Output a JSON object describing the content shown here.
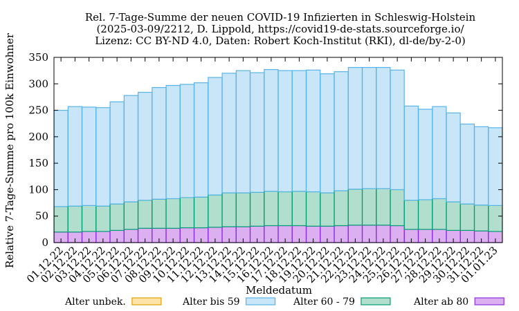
{
  "chart_data": {
    "type": "bar",
    "stacked": true,
    "title": [
      "Rel. 7-Tage-Summe der neuen COVID-19 Infizierten in Schleswig-Holstein",
      "(2025-03-09/2212, D. Lippold, https://covid19-de-stats.sourceforge.io/",
      "Lizenz: CC BY-ND 4.0, Daten: Robert Koch-Institut (RKI), dl-de/by-2-0)"
    ],
    "xlabel": "Meldedatum",
    "ylabel": "Relative 7-Tage-Summe pro 100k Einwohner",
    "ylim": [
      0,
      350
    ],
    "yticks": [
      0,
      50,
      100,
      150,
      200,
      250,
      300,
      350
    ],
    "grid": false,
    "legend_position": "bottom",
    "categories": [
      "01.12.22",
      "02.12.22",
      "03.12.22",
      "04.12.22",
      "05.12.22",
      "06.12.22",
      "07.12.22",
      "08.12.22",
      "09.12.22",
      "10.12.22",
      "11.12.22",
      "12.12.22",
      "13.12.22",
      "14.12.22",
      "15.12.22",
      "16.12.22",
      "17.12.22",
      "18.12.22",
      "19.12.22",
      "20.12.22",
      "21.12.22",
      "22.12.22",
      "23.12.22",
      "24.12.22",
      "25.12.22",
      "26.12.22",
      "27.12.22",
      "28.12.22",
      "29.12.22",
      "30.12.22",
      "31.12.22",
      "01.01.23"
    ],
    "series": [
      {
        "name": "Alter unbek.",
        "fill": "#fde3a7",
        "stroke": "#e69f00",
        "values": [
          0,
          0,
          0,
          0,
          0,
          0,
          0,
          0,
          0,
          0,
          0,
          0,
          0,
          0,
          0,
          0,
          0,
          0,
          0,
          0,
          0,
          0,
          0,
          0,
          0,
          0,
          0,
          0,
          0,
          0,
          0,
          0
        ]
      },
      {
        "name": "Alter ab 80",
        "fill": "#dcaff0",
        "stroke": "#8a2be2",
        "values": [
          20,
          20,
          21,
          21,
          23,
          25,
          27,
          27,
          27,
          28,
          28,
          29,
          30,
          30,
          31,
          32,
          32,
          32,
          31,
          31,
          32,
          33,
          33,
          33,
          32,
          25,
          25,
          25,
          23,
          23,
          22,
          21
        ]
      },
      {
        "name": "Alter 60 - 79",
        "fill": "#b2dfcd",
        "stroke": "#009e73",
        "values": [
          48,
          49,
          49,
          48,
          50,
          52,
          53,
          55,
          56,
          57,
          58,
          61,
          64,
          64,
          64,
          65,
          64,
          65,
          65,
          63,
          66,
          68,
          69,
          69,
          68,
          55,
          56,
          58,
          54,
          50,
          49,
          49
        ]
      },
      {
        "name": "Alter bis 59",
        "fill": "#c8e6f8",
        "stroke": "#56b4e9",
        "values": [
          182,
          188,
          186,
          186,
          193,
          201,
          204,
          211,
          214,
          214,
          216,
          222,
          226,
          231,
          226,
          230,
          229,
          228,
          230,
          225,
          225,
          230,
          229,
          229,
          226,
          178,
          171,
          174,
          168,
          151,
          148,
          147
        ]
      }
    ],
    "legend": [
      {
        "name": "Alter unbek.",
        "fill": "#fde3a7",
        "stroke": "#e69f00"
      },
      {
        "name": "Alter bis 59",
        "fill": "#c8e6f8",
        "stroke": "#56b4e9"
      },
      {
        "name": "Alter 60 - 79",
        "fill": "#b2dfcd",
        "stroke": "#009e73"
      },
      {
        "name": "Alter ab 80",
        "fill": "#dcaff0",
        "stroke": "#8a2be2"
      }
    ]
  }
}
